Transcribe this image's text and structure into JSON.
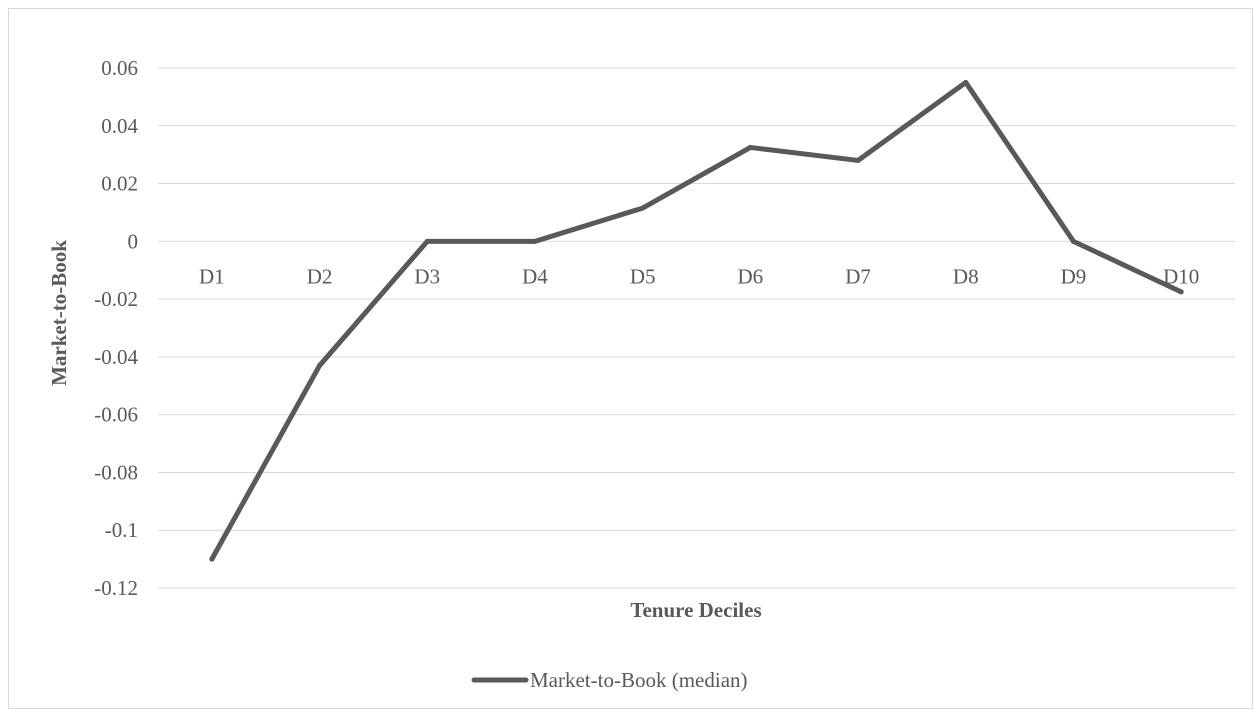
{
  "chart_data": {
    "type": "line",
    "title": "",
    "xlabel": "Tenure Deciles",
    "ylabel": "Market-to-Book",
    "categories": [
      "D1",
      "D2",
      "D3",
      "D4",
      "D5",
      "D6",
      "D7",
      "D8",
      "D9",
      "D10"
    ],
    "series": [
      {
        "name": "Market-to-Book (median)",
        "values": [
          -0.11,
          -0.043,
          0.0,
          0.0,
          0.0115,
          0.0325,
          0.028,
          0.055,
          0.0,
          -0.0175
        ],
        "color": "#595959"
      }
    ],
    "ylim": [
      -0.12,
      0.06
    ],
    "yticks": [
      "0.06",
      "0.04",
      "0.02",
      "0",
      "-0.02",
      "-0.04",
      "-0.06",
      "-0.08",
      "-0.1",
      "-0.12"
    ],
    "grid": true,
    "legend_position": "bottom",
    "category_labels_at_zero": true
  },
  "colors": {
    "gridline": "#d9d9d9",
    "series": "#595959",
    "text": "#595959"
  }
}
